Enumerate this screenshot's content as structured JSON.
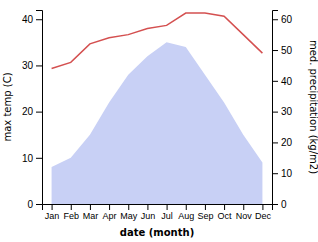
{
  "chart_data": {
    "type": "line",
    "xlabel": "date (month)",
    "ylabel": "max temp (C)",
    "y2label": "med. precipitation (kg/m2)",
    "categories": [
      "Jan",
      "Feb",
      "Mar",
      "Apr",
      "May",
      "Jun",
      "Jul",
      "Aug",
      "Sep",
      "Oct",
      "Nov",
      "Dec"
    ],
    "series": [
      {
        "type": "area",
        "color": "#c8d0f5",
        "values": [
          8,
          10,
          15,
          22,
          28,
          32,
          35,
          34,
          28,
          22,
          15,
          9
        ]
      },
      {
        "type": "line",
        "color": "#d45050",
        "axis": "y2",
        "values": [
          44,
          46,
          52,
          54,
          55,
          57,
          58,
          62,
          62,
          61,
          55,
          49
        ]
      }
    ],
    "ylim": [
      0,
      42
    ],
    "yticks": [
      0,
      10,
      20,
      30,
      40
    ],
    "y2lim": [
      0,
      63
    ],
    "y2ticks": [
      0,
      10,
      20,
      30,
      40,
      50,
      60
    ]
  }
}
